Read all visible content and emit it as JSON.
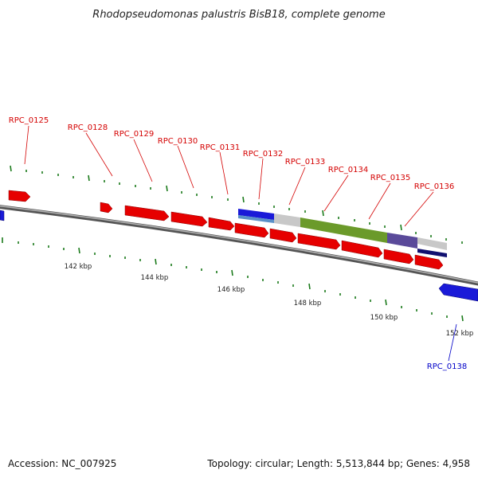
{
  "title": "Rhodopseudomonas palustris BisB18, complete genome",
  "footer": {
    "accession": "Accession: NC_007925",
    "summary": "Topology: circular; Length: 5,513,844 bp; Genes: 4,958"
  },
  "colors": {
    "forward_gene": "#e60000",
    "reverse_gene": "#1a1ad8",
    "backbone": "#8c8c8c",
    "tick": "#1a7a1a",
    "label_forward": "#d40000",
    "label_reverse": "#0000c8"
  },
  "kbp_labels": [
    "142 kbp",
    "144 kbp",
    "146 kbp",
    "148 kbp",
    "150 kbp",
    "152 kbp"
  ],
  "gene_labels_forward": [
    "RPC_0125",
    "RPC_0128",
    "RPC_0129",
    "RPC_0130",
    "RPC_0131",
    "RPC_0132",
    "RPC_0133",
    "RPC_0134",
    "RPC_0135",
    "RPC_0136"
  ],
  "gene_labels_reverse": [
    "RPC_0138"
  ]
}
